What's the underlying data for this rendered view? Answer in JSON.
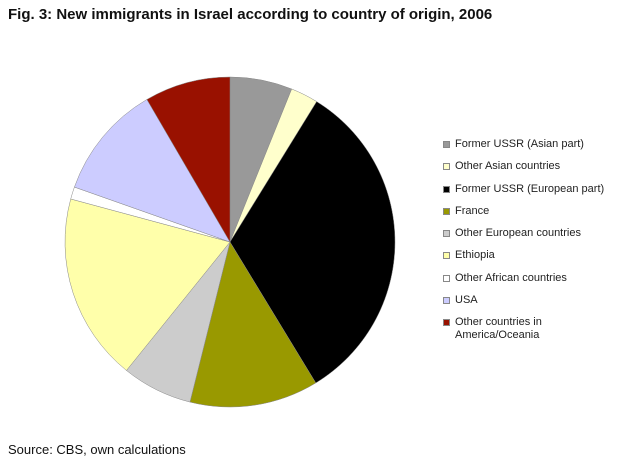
{
  "chart_data": {
    "type": "pie",
    "title": "Fig. 3: New immigrants in Israel according to country of origin, 2006",
    "source": "Source: CBS, own calculations",
    "categories": [
      "Former USSR (Asian part)",
      "Other Asian countries",
      "Former USSR (European part)",
      "France",
      "Other European countries",
      "Ethiopia",
      "Other African countries",
      "USA",
      "Other countries in America/Oceania"
    ],
    "values": [
      6.1,
      2.7,
      32.5,
      12.6,
      6.9,
      18.4,
      1.2,
      11.2,
      8.4
    ],
    "colors": [
      "#999999",
      "#ffffcc",
      "#000000",
      "#999900",
      "#cccccc",
      "#ffffaa",
      "#ffffff",
      "#ccccff",
      "#991100"
    ]
  }
}
